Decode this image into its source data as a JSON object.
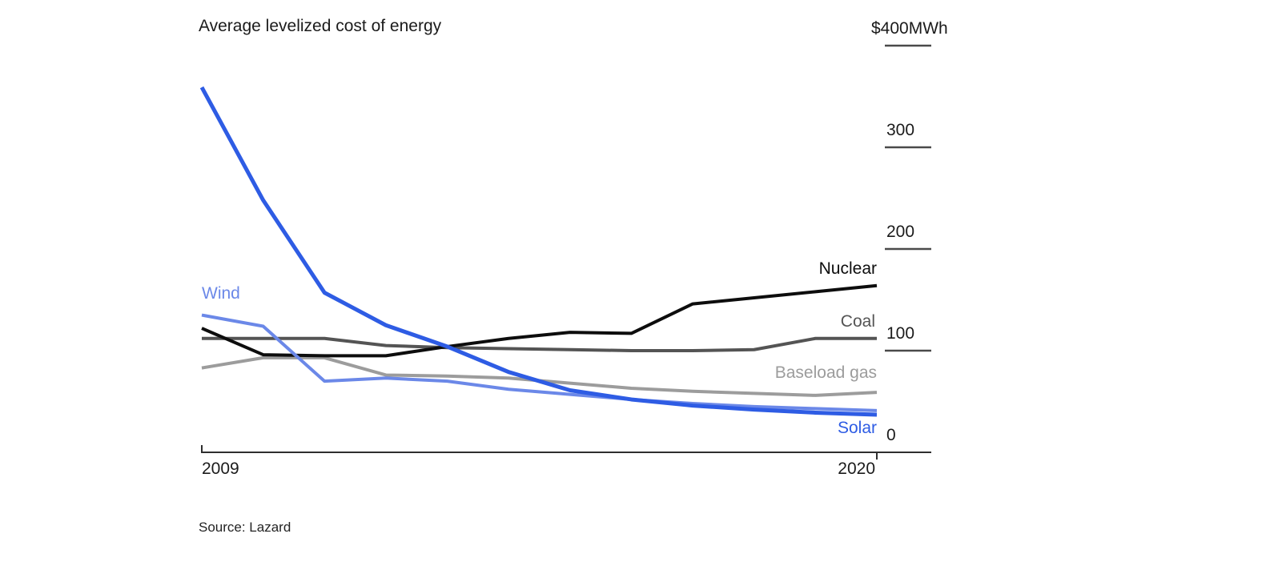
{
  "page": {
    "background": "#ffffff"
  },
  "chart_data": {
    "type": "line",
    "title": "Average levelized cost of energy",
    "source": "Source: Lazard",
    "xlabel": "",
    "ylabel": "",
    "unit": "$/MWh",
    "ylim": [
      0,
      400
    ],
    "grid": false,
    "legend_position": "line-end-labels",
    "axis_color": "#2e2e2e",
    "tick_color": "#4a4a4a",
    "x": [
      2009,
      2010,
      2011,
      2012,
      2013,
      2014,
      2015,
      2016,
      2017,
      2018,
      2019,
      2020
    ],
    "x_tick_labels": [
      "2009",
      "2020"
    ],
    "y_ticks": [
      {
        "value": 400,
        "label": "$400MWh"
      },
      {
        "value": 300,
        "label": "300"
      },
      {
        "value": 200,
        "label": "200"
      },
      {
        "value": 100,
        "label": "100"
      },
      {
        "value": 0,
        "label": "0"
      }
    ],
    "series": [
      {
        "name": "Solar",
        "color": "#2e5ce4",
        "values": [
          359,
          248,
          157,
          125,
          104,
          79,
          61,
          52,
          46,
          42,
          39,
          37
        ]
      },
      {
        "name": "Wind",
        "color": "#6b88e8",
        "values": [
          135,
          124,
          70,
          73,
          70,
          62,
          57,
          52,
          48,
          45,
          43,
          41
        ]
      },
      {
        "name": "Nuclear",
        "color": "#0d0d0d",
        "values": [
          122,
          96,
          95,
          95,
          104,
          112,
          118,
          117,
          146,
          152,
          158,
          164
        ]
      },
      {
        "name": "Coal",
        "color": "#545454",
        "values": [
          112,
          112,
          112,
          105,
          103,
          102,
          101,
          100,
          100,
          101,
          112,
          112
        ]
      },
      {
        "name": "Baseload gas",
        "color": "#9c9c9c",
        "values": [
          83,
          93,
          93,
          76,
          75,
          73,
          68,
          63,
          60,
          58,
          56,
          59
        ]
      }
    ]
  }
}
